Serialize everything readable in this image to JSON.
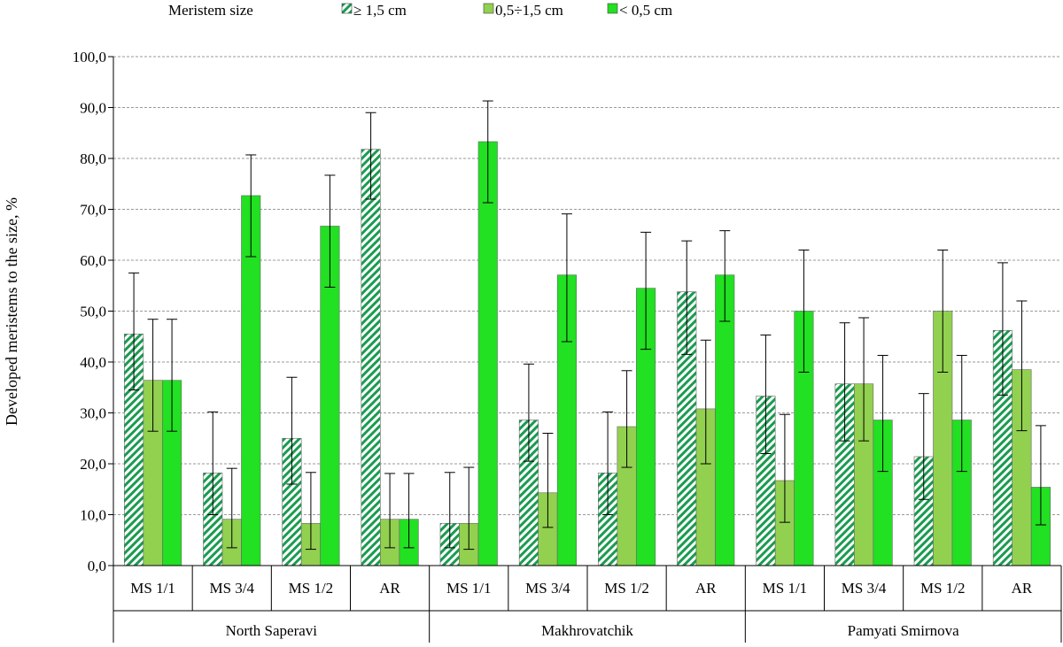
{
  "chart_data": {
    "type": "bar",
    "legend": {
      "title": "Meristem size",
      "placement": "top",
      "entries": [
        "≥ 1,5 cm",
        "0,5÷1,5 cm",
        "< 0,5 cm"
      ]
    },
    "ylabel": "Developed meristems to the size, %",
    "ylim": [
      0,
      100
    ],
    "yticks": [
      "0,0",
      "10,0",
      "20,0",
      "30,0",
      "40,0",
      "50,0",
      "60,0",
      "70,0",
      "80,0",
      "90,0",
      "100,0"
    ],
    "grid": true,
    "groups": [
      "North Saperavi",
      "Makhrovatchik",
      "Pamyati Smirnova"
    ],
    "categories": [
      "MS 1/1",
      "MS 3/4",
      "MS 1/2",
      "AR",
      "MS 1/1",
      "MS 3/4",
      "MS 1/2",
      "AR",
      "MS 1/1",
      "MS 3/4",
      "MS 1/2",
      "AR"
    ],
    "series": [
      {
        "name": "≥ 1,5 cm",
        "color": "#1a9b50",
        "pattern": "diagonal-hatch",
        "values": [
          45.5,
          18.2,
          25.0,
          81.8,
          8.3,
          28.6,
          18.2,
          53.8,
          33.3,
          35.7,
          21.4,
          46.2
        ],
        "error_low": [
          34.5,
          10.0,
          16.0,
          72.0,
          3.5,
          20.5,
          10.0,
          41.5,
          22.0,
          24.5,
          13.0,
          33.5
        ],
        "error_high": [
          57.5,
          30.2,
          37.0,
          89.0,
          18.3,
          39.6,
          30.2,
          63.8,
          45.3,
          47.7,
          33.8,
          59.5
        ]
      },
      {
        "name": "0,5÷1,5 cm",
        "color": "#92d050",
        "values": [
          36.4,
          9.1,
          8.3,
          9.1,
          8.3,
          14.3,
          27.3,
          30.8,
          16.7,
          35.7,
          50.0,
          38.5
        ],
        "error_low": [
          26.4,
          3.5,
          3.2,
          3.5,
          3.2,
          7.5,
          19.3,
          20.0,
          8.5,
          24.5,
          38.0,
          26.5
        ],
        "error_high": [
          48.4,
          19.1,
          18.3,
          18.1,
          19.3,
          26.0,
          38.3,
          44.3,
          29.7,
          48.7,
          62.0,
          52.0
        ]
      },
      {
        "name": "< 0,5 cm",
        "color": "#22e022",
        "values": [
          36.4,
          72.7,
          66.7,
          9.1,
          83.3,
          57.1,
          54.5,
          57.1,
          50.0,
          28.6,
          28.6,
          15.4
        ],
        "error_low": [
          26.4,
          60.7,
          54.7,
          3.5,
          71.3,
          44.0,
          42.5,
          48.0,
          38.0,
          18.5,
          18.5,
          8.0
        ],
        "error_high": [
          48.4,
          80.7,
          76.7,
          18.1,
          91.3,
          69.1,
          65.5,
          65.8,
          62.0,
          41.3,
          41.3,
          27.5
        ]
      }
    ]
  }
}
